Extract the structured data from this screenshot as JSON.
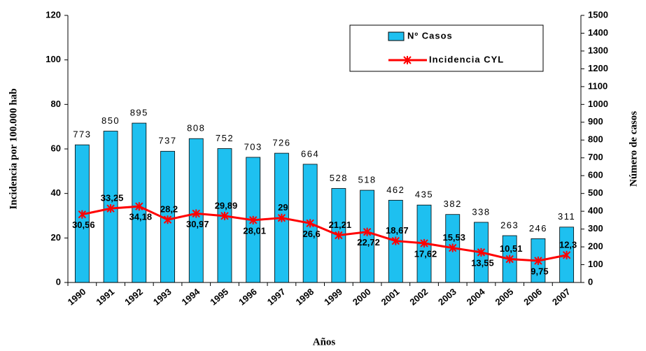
{
  "chart_data": {
    "type": "bar",
    "categories": [
      "1990",
      "1991",
      "1992",
      "1993",
      "1994",
      "1995",
      "1996",
      "1997",
      "1998",
      "1999",
      "2000",
      "2001",
      "2002",
      "2003",
      "2004",
      "2005",
      "2006",
      "2007"
    ],
    "series": [
      {
        "name": "Nº Casos",
        "type": "bar",
        "axis": "y2",
        "color": "#1ec0f0",
        "values": [
          773,
          850,
          895,
          737,
          808,
          752,
          703,
          726,
          664,
          528,
          518,
          462,
          435,
          382,
          338,
          263,
          246,
          311
        ]
      },
      {
        "name": "Incidencia CYL",
        "type": "line",
        "axis": "y",
        "color": "#ff0000",
        "values": [
          30.56,
          33.25,
          34.18,
          28.2,
          30.97,
          29.89,
          28.01,
          29,
          26.6,
          21.21,
          22.72,
          18.67,
          17.62,
          15.53,
          13.55,
          10.51,
          9.75,
          12.3
        ],
        "value_labels": [
          "30,56",
          "33,25",
          "34,18",
          "28,2",
          "30,97",
          "29,89",
          "28,01",
          "29",
          "26,6",
          "21,21",
          "22,72",
          "18,67",
          "17,62",
          "15,53",
          "13,55",
          "10,51",
          "9,75",
          "12,3"
        ]
      }
    ],
    "xlabel": "Años",
    "ylabel": "Incidencia por 100.000 hab",
    "y2label": "Número de casos",
    "ylim": [
      0,
      120
    ],
    "yticks": [
      0,
      20,
      40,
      60,
      80,
      100,
      120
    ],
    "y2lim": [
      0,
      1500
    ],
    "y2ticks": [
      0,
      100,
      200,
      300,
      400,
      500,
      600,
      700,
      800,
      900,
      1000,
      1100,
      1200,
      1300,
      1400,
      1500
    ],
    "legend": "upper right"
  }
}
